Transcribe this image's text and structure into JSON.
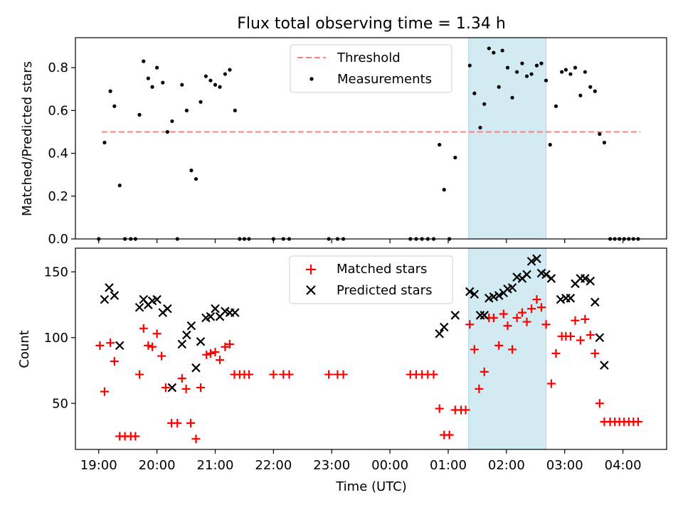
{
  "title": "Flux total observing time = 1.34 h",
  "colors": {
    "threshold": "#ff7f7f",
    "measurement": "#000000",
    "matched": "#ff0000",
    "predicted": "#000000",
    "span": "#add8e6"
  },
  "chart_data": [
    {
      "type": "scatter",
      "ylabel": "Matched/Predicted stars",
      "ylim": [
        0,
        0.94
      ],
      "yticks": [
        "0.0",
        "0.2",
        "0.4",
        "0.6",
        "0.8"
      ],
      "xlim": [
        18.6,
        28.75
      ],
      "highlight_span": [
        25.35,
        26.68
      ],
      "legend": {
        "placement": "top-center",
        "entries": [
          "Threshold",
          "Measurements"
        ]
      },
      "threshold": {
        "name": "Threshold",
        "value": 0.5,
        "x_range": [
          19.05,
          28.3
        ]
      },
      "series": [
        {
          "name": "Measurements",
          "points": [
            [
              19.0,
              0.0
            ],
            [
              19.1,
              0.45
            ],
            [
              19.2,
              0.69
            ],
            [
              19.27,
              0.62
            ],
            [
              19.36,
              0.25
            ],
            [
              19.45,
              0.0
            ],
            [
              19.55,
              0.0
            ],
            [
              19.63,
              0.0
            ],
            [
              19.7,
              0.58
            ],
            [
              19.77,
              0.83
            ],
            [
              19.85,
              0.75
            ],
            [
              19.92,
              0.71
            ],
            [
              20.0,
              0.8
            ],
            [
              20.1,
              0.73
            ],
            [
              20.18,
              0.5
            ],
            [
              20.26,
              0.55
            ],
            [
              20.35,
              0.0
            ],
            [
              20.43,
              0.72
            ],
            [
              20.51,
              0.6
            ],
            [
              20.59,
              0.32
            ],
            [
              20.67,
              0.28
            ],
            [
              20.75,
              0.64
            ],
            [
              20.84,
              0.76
            ],
            [
              20.92,
              0.74
            ],
            [
              21.0,
              0.72
            ],
            [
              21.08,
              0.71
            ],
            [
              21.17,
              0.77
            ],
            [
              21.25,
              0.79
            ],
            [
              21.34,
              0.6
            ],
            [
              21.42,
              0.0
            ],
            [
              21.5,
              0.0
            ],
            [
              21.58,
              0.0
            ],
            [
              22.0,
              0.0
            ],
            [
              22.17,
              0.0
            ],
            [
              22.27,
              0.0
            ],
            [
              22.95,
              0.0
            ],
            [
              23.1,
              0.0
            ],
            [
              23.2,
              0.0
            ],
            [
              24.35,
              0.0
            ],
            [
              24.45,
              0.0
            ],
            [
              24.55,
              0.0
            ],
            [
              24.65,
              0.0
            ],
            [
              24.75,
              0.0
            ],
            [
              24.85,
              0.44
            ],
            [
              24.93,
              0.23
            ],
            [
              25.02,
              0.0
            ],
            [
              25.12,
              0.38
            ],
            [
              25.37,
              0.81
            ],
            [
              25.45,
              0.68
            ],
            [
              25.55,
              0.52
            ],
            [
              25.62,
              0.63
            ],
            [
              25.7,
              0.89
            ],
            [
              25.78,
              0.87
            ],
            [
              25.87,
              0.71
            ],
            [
              25.93,
              0.88
            ],
            [
              26.02,
              0.8
            ],
            [
              26.1,
              0.66
            ],
            [
              26.18,
              0.78
            ],
            [
              26.27,
              0.82
            ],
            [
              26.35,
              0.76
            ],
            [
              26.43,
              0.77
            ],
            [
              26.52,
              0.81
            ],
            [
              26.6,
              0.82
            ],
            [
              26.68,
              0.74
            ],
            [
              26.75,
              0.44
            ],
            [
              26.85,
              0.62
            ],
            [
              26.95,
              0.78
            ],
            [
              27.02,
              0.79
            ],
            [
              27.1,
              0.77
            ],
            [
              27.18,
              0.8
            ],
            [
              27.27,
              0.67
            ],
            [
              27.35,
              0.78
            ],
            [
              27.44,
              0.71
            ],
            [
              27.52,
              0.69
            ],
            [
              27.6,
              0.49
            ],
            [
              27.68,
              0.45
            ],
            [
              27.78,
              0.0
            ],
            [
              27.86,
              0.0
            ],
            [
              27.94,
              0.0
            ],
            [
              28.02,
              0.0
            ],
            [
              28.1,
              0.0
            ],
            [
              28.18,
              0.0
            ],
            [
              28.26,
              0.0
            ]
          ]
        }
      ]
    },
    {
      "type": "scatter",
      "xlabel": "Time (UTC)",
      "ylabel": "Count",
      "ylim": [
        15,
        168
      ],
      "yticks": [
        "50",
        "100",
        "150"
      ],
      "xlim": [
        18.6,
        28.75
      ],
      "xticks": [
        "19:00",
        "20:00",
        "21:00",
        "22:00",
        "23:00",
        "00:00",
        "01:00",
        "02:00",
        "03:00",
        "04:00"
      ],
      "highlight_span": [
        25.35,
        26.68
      ],
      "legend": {
        "placement": "top-center",
        "entries": [
          "Matched stars",
          "Predicted stars"
        ]
      },
      "series": [
        {
          "name": "Matched stars",
          "marker": "+",
          "points": [
            [
              19.02,
              94
            ],
            [
              19.1,
              59
            ],
            [
              19.2,
              96
            ],
            [
              19.27,
              82
            ],
            [
              19.36,
              25
            ],
            [
              19.45,
              25
            ],
            [
              19.55,
              25
            ],
            [
              19.63,
              25
            ],
            [
              19.7,
              72
            ],
            [
              19.77,
              107
            ],
            [
              19.85,
              94
            ],
            [
              19.92,
              93
            ],
            [
              20.0,
              103
            ],
            [
              20.08,
              86
            ],
            [
              20.15,
              62
            ],
            [
              20.25,
              35
            ],
            [
              20.35,
              35
            ],
            [
              20.43,
              69
            ],
            [
              20.5,
              61
            ],
            [
              20.58,
              35
            ],
            [
              20.67,
              23
            ],
            [
              20.75,
              62
            ],
            [
              20.85,
              87
            ],
            [
              20.92,
              88
            ],
            [
              21.0,
              89
            ],
            [
              21.08,
              83
            ],
            [
              21.17,
              93
            ],
            [
              21.25,
              95
            ],
            [
              21.33,
              72
            ],
            [
              21.42,
              72
            ],
            [
              21.5,
              72
            ],
            [
              21.58,
              72
            ],
            [
              22.0,
              72
            ],
            [
              22.17,
              72
            ],
            [
              22.27,
              72
            ],
            [
              22.95,
              72
            ],
            [
              23.1,
              72
            ],
            [
              23.2,
              72
            ],
            [
              24.35,
              72
            ],
            [
              24.45,
              72
            ],
            [
              24.55,
              72
            ],
            [
              24.65,
              72
            ],
            [
              24.75,
              72
            ],
            [
              24.85,
              46
            ],
            [
              24.93,
              26
            ],
            [
              25.02,
              26
            ],
            [
              25.12,
              45
            ],
            [
              25.22,
              45
            ],
            [
              25.3,
              45
            ],
            [
              25.37,
              110
            ],
            [
              25.45,
              91
            ],
            [
              25.53,
              61
            ],
            [
              25.62,
              74
            ],
            [
              25.7,
              115
            ],
            [
              25.78,
              115
            ],
            [
              25.87,
              94
            ],
            [
              25.95,
              118
            ],
            [
              26.02,
              109
            ],
            [
              26.1,
              91
            ],
            [
              26.18,
              115
            ],
            [
              26.27,
              119
            ],
            [
              26.35,
              112
            ],
            [
              26.43,
              122
            ],
            [
              26.52,
              129
            ],
            [
              26.6,
              123
            ],
            [
              26.68,
              110
            ],
            [
              26.77,
              65
            ],
            [
              26.85,
              88
            ],
            [
              26.95,
              101
            ],
            [
              27.02,
              101
            ],
            [
              27.1,
              101
            ],
            [
              27.18,
              113
            ],
            [
              27.27,
              98
            ],
            [
              27.35,
              114
            ],
            [
              27.44,
              102
            ],
            [
              27.52,
              88
            ],
            [
              27.6,
              50
            ],
            [
              27.68,
              36
            ],
            [
              27.78,
              36
            ],
            [
              27.86,
              36
            ],
            [
              27.94,
              36
            ],
            [
              28.02,
              36
            ],
            [
              28.1,
              36
            ],
            [
              28.18,
              36
            ],
            [
              28.26,
              36
            ]
          ]
        },
        {
          "name": "Predicted stars",
          "marker": "x",
          "points": [
            [
              19.1,
              129
            ],
            [
              19.18,
              138
            ],
            [
              19.27,
              132
            ],
            [
              19.36,
              94
            ],
            [
              19.7,
              123
            ],
            [
              19.77,
              129
            ],
            [
              19.85,
              125
            ],
            [
              19.92,
              128
            ],
            [
              20.0,
              129
            ],
            [
              20.1,
              119
            ],
            [
              20.18,
              122
            ],
            [
              20.26,
              62
            ],
            [
              20.43,
              95
            ],
            [
              20.51,
              102
            ],
            [
              20.59,
              109
            ],
            [
              20.67,
              77
            ],
            [
              20.75,
              97
            ],
            [
              20.84,
              115
            ],
            [
              20.92,
              116
            ],
            [
              21.0,
              122
            ],
            [
              21.08,
              116
            ],
            [
              21.17,
              120
            ],
            [
              21.25,
              119
            ],
            [
              21.34,
              119
            ],
            [
              24.85,
              103
            ],
            [
              24.93,
              108
            ],
            [
              25.12,
              117
            ],
            [
              25.37,
              135
            ],
            [
              25.45,
              133
            ],
            [
              25.55,
              117
            ],
            [
              25.62,
              117
            ],
            [
              25.7,
              130
            ],
            [
              25.78,
              131
            ],
            [
              25.87,
              132
            ],
            [
              25.95,
              134
            ],
            [
              26.02,
              137
            ],
            [
              26.1,
              138
            ],
            [
              26.18,
              146
            ],
            [
              26.27,
              145
            ],
            [
              26.35,
              148
            ],
            [
              26.43,
              158
            ],
            [
              26.52,
              160
            ],
            [
              26.6,
              149
            ],
            [
              26.68,
              148
            ],
            [
              26.77,
              145
            ],
            [
              26.93,
              129
            ],
            [
              27.02,
              130
            ],
            [
              27.1,
              130
            ],
            [
              27.18,
              141
            ],
            [
              27.27,
              145
            ],
            [
              27.35,
              145
            ],
            [
              27.44,
              143
            ],
            [
              27.52,
              127
            ],
            [
              27.6,
              100
            ],
            [
              27.68,
              79
            ]
          ]
        }
      ]
    }
  ]
}
